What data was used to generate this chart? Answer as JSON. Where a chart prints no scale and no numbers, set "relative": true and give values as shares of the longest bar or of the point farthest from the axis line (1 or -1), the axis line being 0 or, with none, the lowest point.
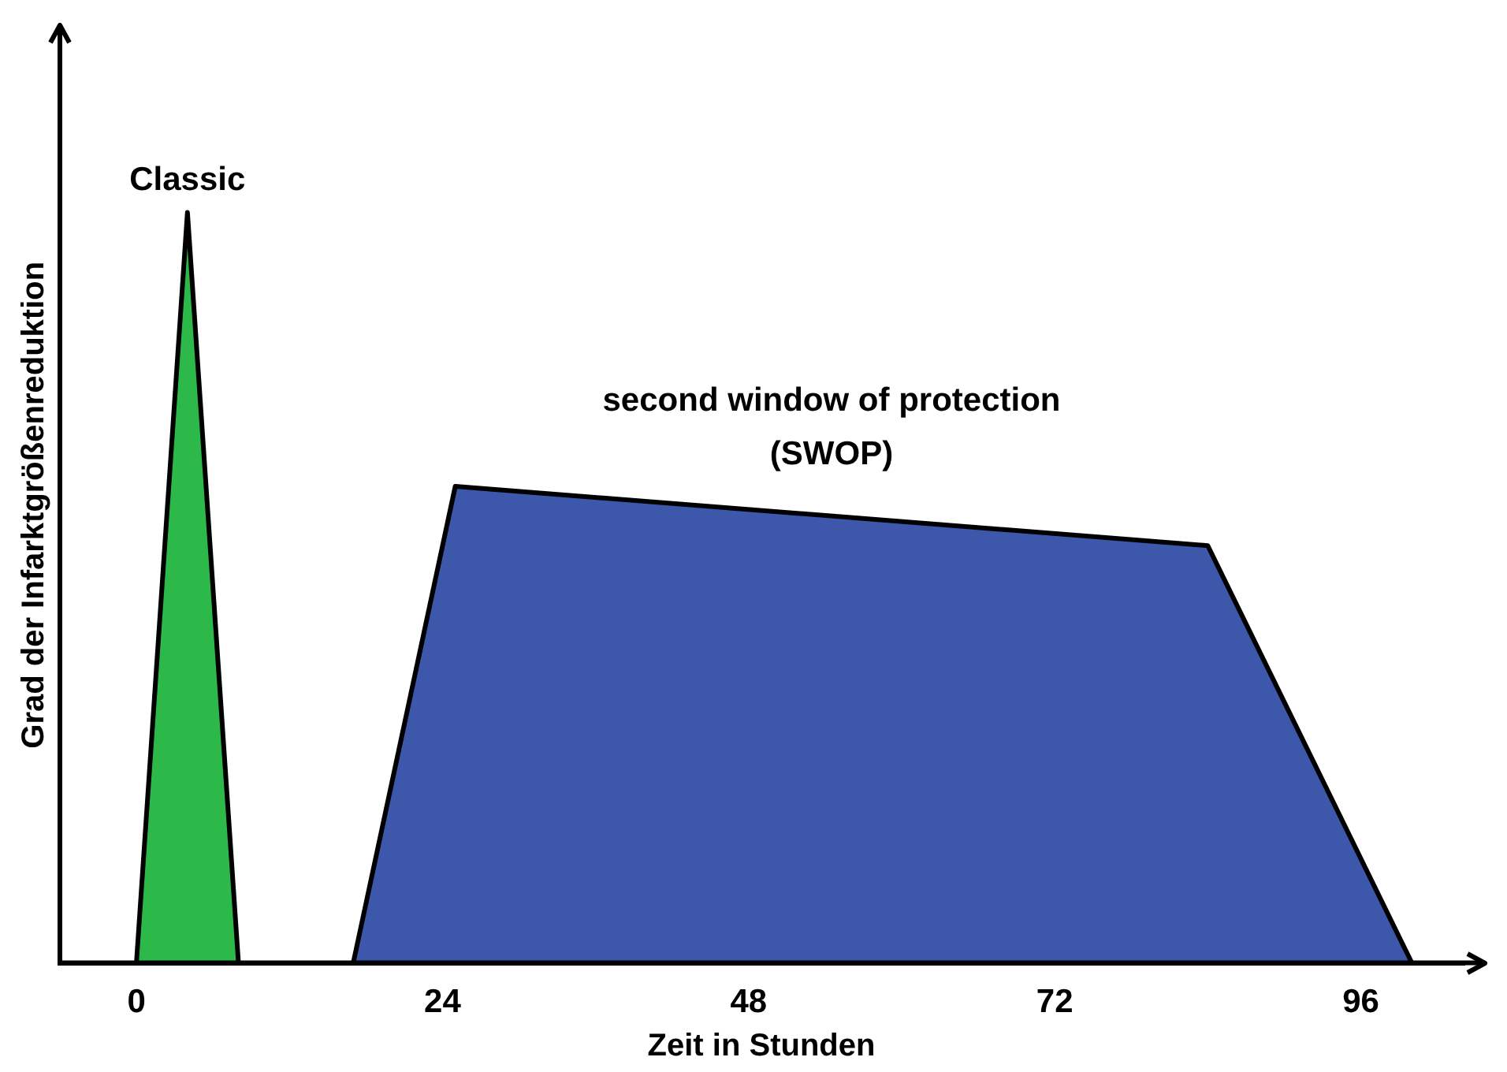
{
  "chart_data": {
    "type": "area",
    "relative": true,
    "xlabel": "Zeit in Stunden",
    "ylabel": "Grad der Infarktgrößenreduktion",
    "xlim": [
      -6,
      104
    ],
    "xticks": [
      0,
      24,
      48,
      72,
      96
    ],
    "grid": false,
    "legend": false,
    "series": [
      {
        "name": "Classic",
        "color": "#2db84a",
        "x": [
          0,
          4,
          8
        ],
        "values": [
          0,
          1,
          0
        ]
      },
      {
        "name": "second window of protection\n(SWOP)",
        "color": "#3d58ab",
        "x": [
          17,
          25,
          84,
          100
        ],
        "values": [
          0,
          0.635,
          0.556,
          0
        ]
      }
    ]
  }
}
